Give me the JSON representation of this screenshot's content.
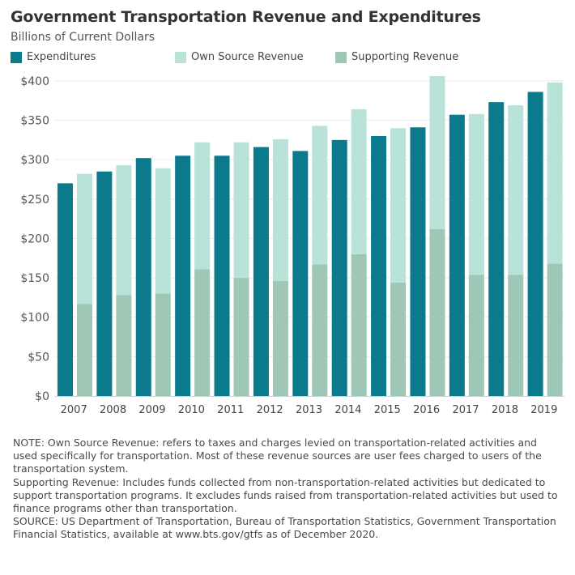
{
  "title": "Government Transportation Revenue and Expenditures",
  "subtitle": "Billions of Current Dollars",
  "legend": [
    {
      "label": "Expenditures",
      "color": "#0a7a8c"
    },
    {
      "label": "Own Source Revenue",
      "color": "#b9e3d9"
    },
    {
      "label": "Supporting Revenue",
      "color": "#9ec7b6"
    }
  ],
  "notes": {
    "note1": "NOTE: Own Source Revenue: refers to taxes and charges levied on transportation-related activities and used specifically for transportation. Most of these revenue sources are user fees charged to users of the transportation system.",
    "note2": "Supporting Revenue: Includes funds collected from non-transportation-related activities but dedicated to support transportation programs. It excludes funds raised from transportation-related activities but used to finance programs other than transportation.",
    "source": "SOURCE: US Department of Transportation, Bureau of Transportation Statistics, Government Transportation Financial Statistics, available at www.bts.gov/gtfs as of December 2020."
  },
  "chart_data": {
    "type": "bar",
    "categories": [
      "2007",
      "2008",
      "2009",
      "2010",
      "2011",
      "2012",
      "2013",
      "2014",
      "2015",
      "2016",
      "2017",
      "2018",
      "2019"
    ],
    "series": [
      {
        "name": "Expenditures",
        "color": "#0a7a8c",
        "values": [
          270,
          285,
          302,
          305,
          305,
          316,
          311,
          325,
          330,
          341,
          357,
          373,
          386
        ]
      },
      {
        "name": "Supporting Revenue",
        "color": "#9ec7b6",
        "values": [
          117,
          128,
          130,
          161,
          150,
          146,
          167,
          180,
          144,
          212,
          154,
          154,
          168
        ]
      },
      {
        "name": "Own Source Revenue",
        "color": "#b9e3d9",
        "values": [
          165,
          165,
          159,
          161,
          172,
          180,
          176,
          184,
          196,
          194,
          204,
          215,
          230
        ]
      }
    ],
    "revenue_stacked": true,
    "ylim": [
      0,
      405
    ],
    "yticks": [
      0,
      50,
      100,
      150,
      200,
      250,
      300,
      350,
      400
    ],
    "ytick_labels": [
      "$0",
      "$50",
      "$100",
      "$150",
      "$200",
      "$250",
      "$300",
      "$350",
      "$400"
    ],
    "xlabel": "",
    "ylabel": "",
    "grid": true
  }
}
